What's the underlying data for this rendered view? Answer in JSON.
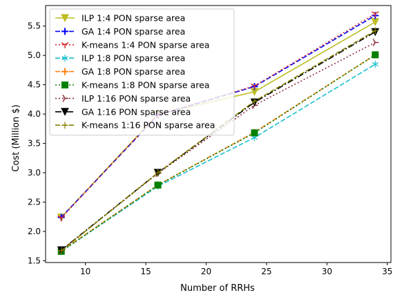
{
  "chart_data": {
    "type": "line",
    "xlabel": "Number of RRHs",
    "ylabel": "Cost (Million $)",
    "x": [
      8,
      16,
      24,
      34
    ],
    "xlim": [
      6.7,
      35.3
    ],
    "ylim": [
      1.47,
      5.85
    ],
    "xticks": [
      10,
      15,
      20,
      25,
      30,
      35
    ],
    "yticks": [
      1.5,
      2.0,
      2.5,
      3.0,
      3.5,
      4.0,
      4.5,
      5.0,
      5.5
    ],
    "ytick_labels": [
      "1.5",
      "2.0",
      "2.5",
      "3.0",
      "3.5",
      "4.0",
      "4.5",
      "5.0",
      "5.5"
    ],
    "legend_position": "upper-left",
    "series": [
      {
        "name": "ILP 1:4 PON sparse area",
        "values": [
          2.24,
          4.0,
          4.38,
          5.57
        ],
        "color": "#bcbd22",
        "dash": "solid",
        "marker": "triangle-down"
      },
      {
        "name": "GA 1:4 PON sparse area",
        "values": [
          2.24,
          3.98,
          4.47,
          5.68
        ],
        "color": "#0000ff",
        "dash": "dashed",
        "marker": "plus"
      },
      {
        "name": "K-means 1:4 PON sparse area",
        "values": [
          2.23,
          3.99,
          4.48,
          5.71
        ],
        "color": "#d62728",
        "dash": "dotted",
        "marker": "tri-down"
      },
      {
        "name": "ILP 1:8 PON sparse area",
        "values": [
          1.66,
          2.77,
          3.6,
          4.85
        ],
        "color": "#17becf",
        "dash": "dashed",
        "marker": "star"
      },
      {
        "name": "GA 1:8 PON sparse area",
        "values": [
          1.67,
          2.79,
          3.69,
          5.01
        ],
        "color": "#ff7f0e",
        "dash": "dashed",
        "marker": "plus"
      },
      {
        "name": "K-means 1:8 PON sparse area",
        "values": [
          1.66,
          2.79,
          3.68,
          5.01
        ],
        "color": "#008000",
        "dash": "dotted",
        "marker": "square"
      },
      {
        "name": "ILP 1:16 PON sparse area",
        "values": [
          1.68,
          2.99,
          4.15,
          5.22
        ],
        "color": "#8c2d3c",
        "dash": "dotted",
        "marker": "tri-right"
      },
      {
        "name": "GA 1:16 PON sparse area",
        "values": [
          1.68,
          3.0,
          4.2,
          5.4
        ],
        "color": "#000000",
        "dash": "dashdot",
        "marker": "triangle-down"
      },
      {
        "name": "K-means 1:16 PON sparse area",
        "values": [
          1.67,
          3.0,
          4.22,
          5.42
        ],
        "color": "#808000",
        "dash": "dashed",
        "marker": "thin-plus"
      }
    ]
  }
}
